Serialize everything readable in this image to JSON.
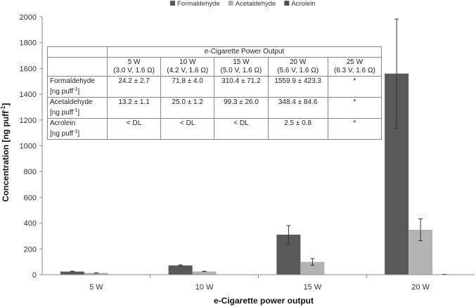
{
  "chart_data": {
    "type": "bar",
    "title": "",
    "xlabel": "e-Cigarette power output",
    "ylabel": "Concentration [ng puff",
    "ylabel_sup": "-1",
    "ylabel_close": "]",
    "ylim": [
      0,
      2000
    ],
    "yticks": [
      "0",
      "200",
      "400",
      "600",
      "800",
      "1000",
      "1200",
      "1400",
      "1600",
      "1800",
      "2000"
    ],
    "categories": [
      "5 W",
      "10 W",
      "15 W",
      "20 W"
    ],
    "legend_position": "top-center",
    "grid": false,
    "series": [
      {
        "name": "Formaldehyde",
        "color": "#595959",
        "values": [
          24.2,
          71.8,
          310.4,
          1559.9
        ],
        "errors": [
          2.7,
          4.0,
          71.2,
          423.3
        ]
      },
      {
        "name": "Acetaldehyde",
        "color": "#b3b3b3",
        "values": [
          13.2,
          25.0,
          99.3,
          348.4
        ],
        "errors": [
          1.1,
          1.2,
          26.0,
          84.6
        ]
      },
      {
        "name": "Acrolein",
        "color": "#4f4f4f",
        "values": [
          0,
          0,
          0,
          2.5
        ],
        "errors": [
          0,
          0,
          0,
          0.8
        ]
      }
    ]
  },
  "table": {
    "group_header": "e-Cigarette Power Output",
    "columns": [
      {
        "power": "5 W",
        "settings": "(3.0 V, 1.6 Ω)"
      },
      {
        "power": "10 W",
        "settings": "(4.2 V, 1.6 Ω)"
      },
      {
        "power": "15 W",
        "settings": "(5.0 V, 1.6 Ω)"
      },
      {
        "power": "20 W",
        "settings": "(5.6 V, 1.6 Ω)"
      },
      {
        "power": "25 W",
        "settings": "(6.3 V, 1.6 Ω)"
      }
    ],
    "unit_prefix": "[ng puff",
    "unit_sup": "-1",
    "unit_suffix": "]",
    "rows": [
      {
        "label": "Formaldehyde",
        "cells": [
          "24.2 ± 2.7",
          "71.8 ± 4.0",
          "310.4 ± 71.2",
          "1559.9 ± 423.3",
          "*"
        ]
      },
      {
        "label": "Acetaldehyde",
        "cells": [
          "13.2 ± 1.1",
          "25.0 ± 1.2",
          "99.3 ± 26.0",
          "348.4 ± 84.6",
          "*"
        ]
      },
      {
        "label": "Acrolein",
        "cells": [
          "< DL",
          "< DL",
          "< DL",
          "2.5 ± 0.8",
          "*"
        ]
      }
    ]
  }
}
